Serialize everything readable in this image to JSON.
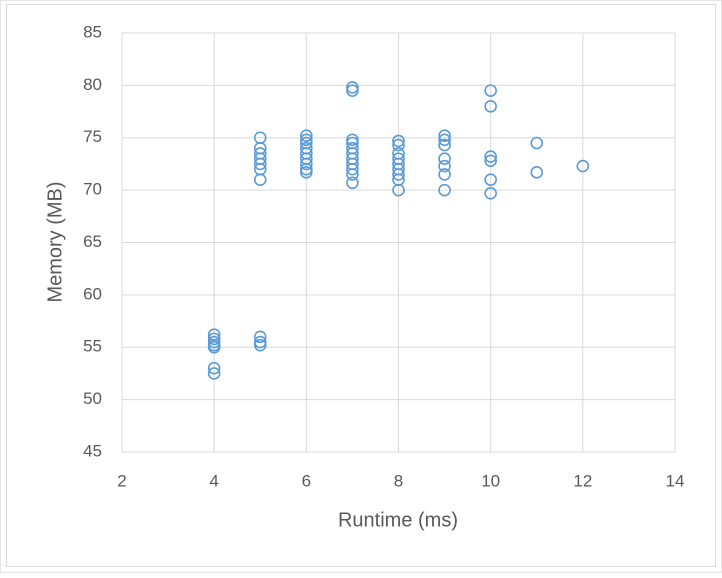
{
  "chart_data": {
    "type": "scatter",
    "x_label": "Runtime (ms)",
    "y_label": "Memory (MB)",
    "x": [
      4,
      4,
      4,
      4,
      4,
      4,
      4,
      5,
      5,
      5,
      5,
      5,
      5,
      5,
      5,
      5,
      5,
      6,
      6,
      6,
      6,
      6,
      6,
      6,
      6,
      6,
      7,
      7,
      7,
      7,
      7,
      7,
      7,
      7,
      7,
      7,
      7,
      8,
      8,
      8,
      8,
      8,
      8,
      8,
      8,
      8,
      9,
      9,
      9,
      9,
      9,
      9,
      9,
      10,
      10,
      10,
      10,
      10,
      10,
      11,
      11,
      12
    ],
    "y": [
      56.2,
      55.8,
      55.5,
      55.2,
      55.0,
      53.0,
      52.5,
      75.0,
      74.0,
      73.5,
      73.0,
      72.5,
      72.0,
      71.0,
      56.0,
      55.5,
      55.2,
      75.2,
      74.8,
      74.5,
      74.0,
      73.5,
      73.0,
      72.5,
      72.0,
      71.7,
      79.8,
      79.5,
      74.8,
      74.5,
      74.0,
      73.5,
      73.0,
      72.5,
      72.0,
      71.5,
      70.7,
      74.7,
      74.3,
      73.5,
      73.0,
      72.5,
      72.0,
      71.5,
      71.0,
      70.0,
      75.2,
      74.8,
      74.3,
      73.0,
      72.3,
      71.5,
      70.0,
      79.5,
      78.0,
      73.2,
      72.8,
      71.0,
      69.7,
      74.5,
      71.7,
      72.3
    ],
    "color": "#5b9bd5",
    "xlim": [
      2,
      14
    ],
    "xticks": [
      2,
      4,
      6,
      8,
      10,
      12,
      14
    ],
    "ylim": [
      45,
      85
    ],
    "yticks": [
      45,
      50,
      55,
      60,
      65,
      70,
      75,
      80,
      85
    ],
    "grid": true
  }
}
